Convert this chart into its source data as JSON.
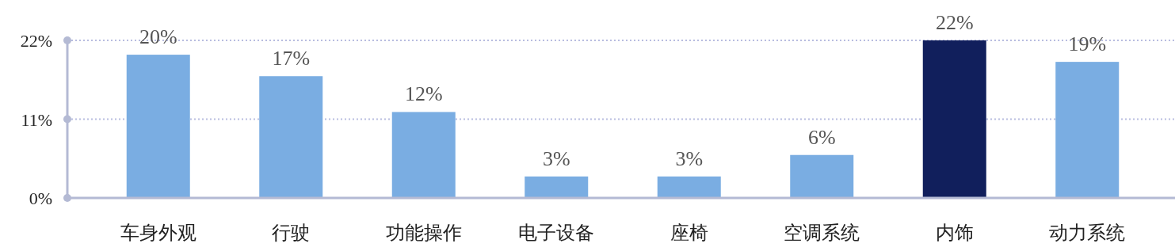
{
  "chart_data": {
    "type": "bar",
    "categories": [
      "车身外观",
      "行驶",
      "功能操作",
      "电子设备",
      "座椅",
      "空调系统",
      "内饰",
      "动力系统"
    ],
    "values": [
      20,
      17,
      12,
      3,
      3,
      6,
      22,
      19
    ],
    "colors": [
      "#7aade2",
      "#7aade2",
      "#7aade2",
      "#7aade2",
      "#7aade2",
      "#7aade2",
      "#111f5c",
      "#7aade2"
    ],
    "value_labels": [
      "20%",
      "17%",
      "12%",
      "3%",
      "3%",
      "6%",
      "22%",
      "19%"
    ],
    "ylim": [
      0,
      22
    ],
    "yticks": [
      {
        "value": 0,
        "label": "0%"
      },
      {
        "value": 11,
        "label": "11%"
      },
      {
        "value": 22,
        "label": "22%"
      }
    ],
    "grid": "y"
  }
}
